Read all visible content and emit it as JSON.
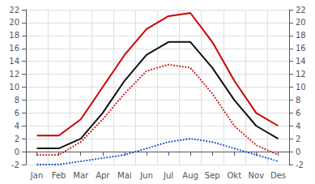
{
  "chart_data": {
    "type": "line",
    "categories": [
      "Jan",
      "Feb",
      "Mar",
      "Apr",
      "Mai",
      "Jun",
      "Jul",
      "Aug",
      "Sep",
      "Okt",
      "Nov",
      "Des"
    ],
    "series": [
      {
        "color": "#0044cc",
        "line_style": "dotted",
        "values": [
          -2.0,
          -2.0,
          -1.5,
          -1.0,
          -0.5,
          0.5,
          1.5,
          2.0,
          1.5,
          0.5,
          -0.5,
          -1.5
        ]
      },
      {
        "color": "#cc0000",
        "line_style": "dotted",
        "values": [
          -0.5,
          -0.5,
          1.5,
          5.0,
          9.0,
          12.5,
          13.5,
          13.0,
          9.0,
          4.0,
          1.0,
          -0.5
        ]
      },
      {
        "color": "#cc0000",
        "line_style": "solid",
        "values": [
          2.5,
          2.5,
          5.0,
          10.0,
          15.0,
          19.0,
          21.0,
          21.5,
          17.0,
          11.0,
          6.0,
          4.0
        ]
      },
      {
        "color": "#111111",
        "line_style": "solid",
        "values": [
          0.5,
          0.5,
          2.0,
          6.0,
          11.0,
          15.0,
          17.0,
          17.0,
          13.0,
          8.0,
          4.0,
          2.0
        ]
      }
    ],
    "ylim": [
      -2,
      22
    ],
    "yticks": [
      -2,
      0,
      2,
      4,
      6,
      8,
      10,
      12,
      14,
      16,
      18,
      20,
      22
    ],
    "y2lim": [
      -2,
      22
    ],
    "y2ticks": [
      -2,
      0,
      2,
      4,
      6,
      8,
      10,
      12,
      14,
      16,
      18,
      20,
      22
    ],
    "grid": true
  }
}
